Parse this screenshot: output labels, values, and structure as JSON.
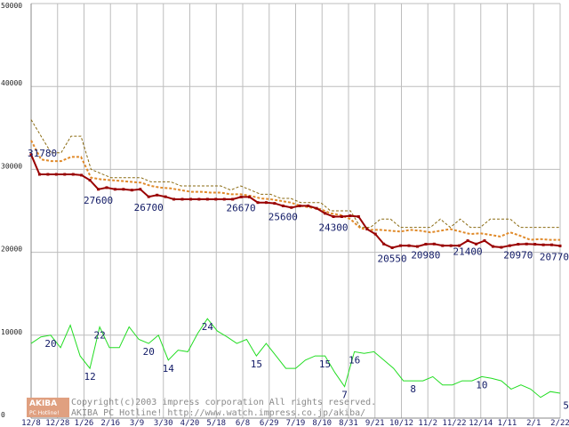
{
  "colors": {
    "upper_band": "#8a6a10",
    "average": "#e08a2a",
    "lowest": "#990000",
    "count": "#22dd22",
    "grid": "#bdbdbd",
    "logo_bg": "#e0a080"
  },
  "logo": {
    "main": "AKIBA",
    "sub": "PC Hotline!"
  },
  "copyright": {
    "line1": "Copyright(c)2003 impress corporation All rights reserved.",
    "line2": "AKIBA PC Hotline! http://www.watch.impress.co.jp/akiba/"
  },
  "chart_data": {
    "type": "line",
    "title": "",
    "xlabel": "",
    "ylabel": "",
    "ylim": [
      0,
      50000
    ],
    "y_ticks": [
      "0",
      "10000",
      "20000",
      "30000",
      "40000",
      "50000"
    ],
    "y_tick_values": [
      0,
      10000,
      20000,
      30000,
      40000,
      50000
    ],
    "x_tick_labels": [
      "12/8",
      "12/28",
      "1/26",
      "2/16",
      "3/9",
      "3/30",
      "4/20",
      "5/18",
      "6/8",
      "6/29",
      "7/19",
      "8/10",
      "8/31",
      "9/21",
      "10/12",
      "11/2",
      "11/22",
      "12/14",
      "1/11",
      "2/1",
      "2/22"
    ],
    "series": [
      {
        "name": "upper",
        "values": [
          36000,
          34000,
          32000,
          32000,
          34000,
          34000,
          30000,
          29500,
          29000,
          29000,
          29000,
          29000,
          28500,
          28500,
          28500,
          28000,
          28000,
          28000,
          28000,
          28000,
          27500,
          28000,
          27500,
          27000,
          27000,
          26500,
          26500,
          26000,
          26000,
          26000,
          25000,
          25000,
          25000,
          23000,
          23000,
          24000,
          24000,
          23000,
          23000,
          23000,
          23000,
          24000,
          23000,
          24000,
          23000,
          23000,
          24000,
          24000,
          24000,
          23000,
          23000,
          23000,
          23000,
          23000
        ]
      },
      {
        "name": "average",
        "values": [
          33500,
          31200,
          31000,
          31000,
          31500,
          31500,
          29000,
          28800,
          28700,
          28600,
          28500,
          28400,
          28000,
          27800,
          27700,
          27500,
          27300,
          27300,
          27200,
          27200,
          27000,
          27000,
          26800,
          26500,
          26400,
          26200,
          26000,
          25600,
          25400,
          25200,
          24700,
          24500,
          24000,
          22900,
          22700,
          22700,
          22600,
          22500,
          22700,
          22600,
          22400,
          22600,
          22800,
          22500,
          22200,
          22300,
          22100,
          21900,
          22400,
          22000,
          21500,
          21600,
          21500,
          21500
        ]
      },
      {
        "name": "lowest",
        "values": [
          31780,
          29400,
          29400,
          29400,
          29400,
          29400,
          29300,
          28700,
          27600,
          27800,
          27600,
          27600,
          27500,
          27600,
          26700,
          26900,
          26700,
          26400,
          26400,
          26400,
          26400,
          26400,
          26400,
          26400,
          26400,
          26670,
          26670,
          26000,
          26000,
          25900,
          25600,
          25400,
          25600,
          25600,
          25300,
          24700,
          24300,
          24300,
          24400,
          24300,
          22800,
          22200,
          21000,
          20550,
          20800,
          20800,
          20700,
          20980,
          21000,
          20800,
          20800,
          20800,
          21400,
          21000,
          21400,
          20700,
          20600,
          20800,
          20970,
          21000,
          20970,
          20900,
          20900,
          20770
        ]
      },
      {
        "name": "count",
        "values": [
          9000,
          9800,
          10000,
          8500,
          11200,
          7500,
          6000,
          11000,
          8500,
          8500,
          11000,
          9500,
          9000,
          10000,
          7000,
          8200,
          8000,
          10200,
          12000,
          10500,
          9800,
          9000,
          9500,
          7500,
          9000,
          7500,
          6000,
          6000,
          7000,
          7500,
          7500,
          5500,
          3800,
          8000,
          7800,
          8000,
          7000,
          6000,
          4500,
          4500,
          4500,
          5000,
          4000,
          4000,
          4500,
          4500,
          5000,
          4800,
          4500,
          3500,
          4000,
          3500,
          2500,
          3200,
          3000
        ]
      }
    ],
    "annotations": [
      {
        "text": "31780",
        "series": "lowest",
        "index": 0
      },
      {
        "text": "27600",
        "series": "lowest",
        "index": 8
      },
      {
        "text": "26700",
        "series": "lowest",
        "index": 14
      },
      {
        "text": "26670",
        "series": "lowest",
        "index": 25
      },
      {
        "text": "25600",
        "series": "lowest",
        "index": 30
      },
      {
        "text": "24300",
        "series": "lowest",
        "index": 36
      },
      {
        "text": "20550",
        "series": "lowest",
        "index": 43
      },
      {
        "text": "20980",
        "series": "lowest",
        "index": 47
      },
      {
        "text": "21400",
        "series": "lowest",
        "index": 52
      },
      {
        "text": "20970",
        "series": "lowest",
        "index": 58
      },
      {
        "text": "20770",
        "series": "lowest",
        "index": 63
      },
      {
        "text": "20",
        "series": "count",
        "index": 2
      },
      {
        "text": "12",
        "series": "count",
        "index": 6
      },
      {
        "text": "22",
        "series": "count",
        "index": 7
      },
      {
        "text": "20",
        "series": "count",
        "index": 12
      },
      {
        "text": "14",
        "series": "count",
        "index": 14
      },
      {
        "text": "24",
        "series": "count",
        "index": 18
      },
      {
        "text": "15",
        "series": "count",
        "index": 23
      },
      {
        "text": "15",
        "series": "count",
        "index": 30
      },
      {
        "text": "7",
        "series": "count",
        "index": 32
      },
      {
        "text": "16",
        "series": "count",
        "index": 33
      },
      {
        "text": "8",
        "series": "count",
        "index": 39
      },
      {
        "text": "10",
        "series": "count",
        "index": 46
      },
      {
        "text": "5",
        "series": "count",
        "index": 52
      }
    ]
  }
}
